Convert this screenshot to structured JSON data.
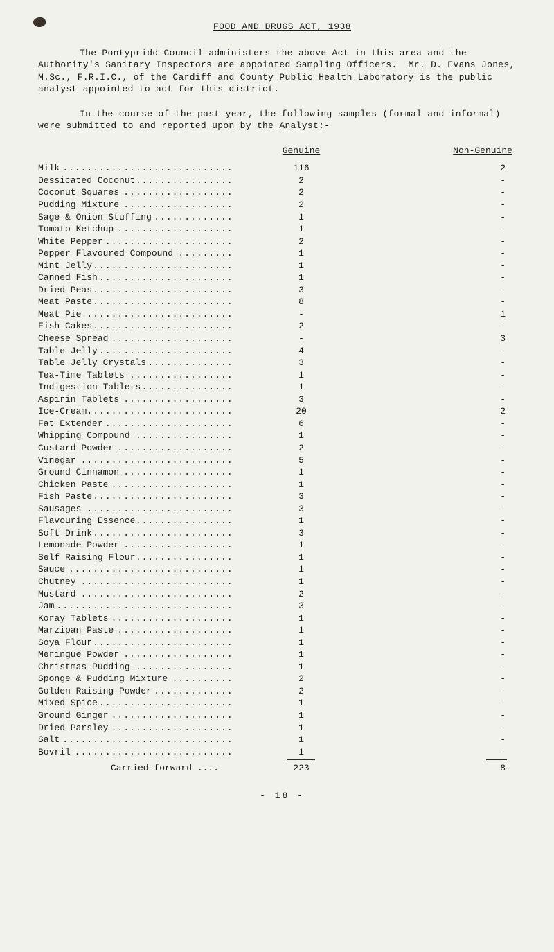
{
  "title": "FOOD AND DRUGS ACT, 1938",
  "para1": "The Pontypridd Council administers the above Act in this area and the Authority's Sanitary Inspectors are appointed Sampling Officers.  Mr. D. Evans Jones, M.Sc., F.R.I.C., of the Cardiff and County Public Health Laboratory is the public analyst appointed to act for this district.",
  "para2": "In the course of the past year, the following samples (formal and informal) were submitted to and reported upon by the Analyst:-",
  "headers": {
    "genuine": "Genuine",
    "non_genuine": "Non-Genuine"
  },
  "rows": [
    {
      "label": "Milk",
      "genuine": "116",
      "non": "2"
    },
    {
      "label": "Dessicated Coconut",
      "genuine": "2",
      "non": "-"
    },
    {
      "label": "Coconut Squares",
      "genuine": "2",
      "non": "-"
    },
    {
      "label": "Pudding Mixture",
      "genuine": "2",
      "non": "-"
    },
    {
      "label": "Sage & Onion Stuffing",
      "genuine": "1",
      "non": "-"
    },
    {
      "label": "Tomato Ketchup",
      "genuine": "1",
      "non": "-"
    },
    {
      "label": "White Pepper",
      "genuine": "2",
      "non": "-"
    },
    {
      "label": "Pepper Flavoured Compound",
      "genuine": "1",
      "non": "-"
    },
    {
      "label": "Mint Jelly",
      "genuine": "1",
      "non": "-"
    },
    {
      "label": "Canned Fish",
      "genuine": "1",
      "non": "-"
    },
    {
      "label": "Dried Peas",
      "genuine": "3",
      "non": "-"
    },
    {
      "label": "Meat Paste",
      "genuine": "8",
      "non": "-"
    },
    {
      "label": "Meat Pie",
      "genuine": "-",
      "non": "1"
    },
    {
      "label": "Fish Cakes",
      "genuine": "2",
      "non": "-"
    },
    {
      "label": "Cheese Spread",
      "genuine": "-",
      "non": "3"
    },
    {
      "label": "Table Jelly",
      "genuine": "4",
      "non": "-"
    },
    {
      "label": "Table Jelly Crystals",
      "genuine": "3",
      "non": "-"
    },
    {
      "label": "Tea-Time Tablets",
      "genuine": "1",
      "non": "-"
    },
    {
      "label": "Indigestion Tablets",
      "genuine": "1",
      "non": "-"
    },
    {
      "label": "Aspirin Tablets",
      "genuine": "3",
      "non": "-"
    },
    {
      "label": "Ice-Cream",
      "genuine": "20",
      "non": "2"
    },
    {
      "label": "Fat Extender",
      "genuine": "6",
      "non": "-"
    },
    {
      "label": "Whipping Compound",
      "genuine": "1",
      "non": "-"
    },
    {
      "label": "Custard Powder",
      "genuine": "2",
      "non": "-"
    },
    {
      "label": "Vinegar",
      "genuine": "5",
      "non": "-"
    },
    {
      "label": "Ground Cinnamon",
      "genuine": "1",
      "non": "-"
    },
    {
      "label": "Chicken Paste",
      "genuine": "1",
      "non": "-"
    },
    {
      "label": "Fish Paste",
      "genuine": "3",
      "non": "-"
    },
    {
      "label": "Sausages",
      "genuine": "3",
      "non": "-"
    },
    {
      "label": "Flavouring Essence",
      "genuine": "1",
      "non": "-"
    },
    {
      "label": "Soft Drink",
      "genuine": "3",
      "non": "-"
    },
    {
      "label": "Lemonade Powder",
      "genuine": "1",
      "non": "-"
    },
    {
      "label": "Self Raising Flour",
      "genuine": "1",
      "non": "-"
    },
    {
      "label": "Sauce",
      "genuine": "1",
      "non": "-"
    },
    {
      "label": "Chutney",
      "genuine": "1",
      "non": "-"
    },
    {
      "label": "Mustard",
      "genuine": "2",
      "non": "-"
    },
    {
      "label": "Jam",
      "genuine": "3",
      "non": "-"
    },
    {
      "label": "Koray Tablets",
      "genuine": "1",
      "non": "-"
    },
    {
      "label": "Marzipan Paste",
      "genuine": "1",
      "non": "-"
    },
    {
      "label": "Soya Flour",
      "genuine": "1",
      "non": "-"
    },
    {
      "label": "Meringue Powder",
      "genuine": "1",
      "non": "-"
    },
    {
      "label": "Christmas Pudding",
      "genuine": "1",
      "non": "-"
    },
    {
      "label": "Sponge & Pudding Mixture",
      "genuine": "2",
      "non": "-"
    },
    {
      "label": "Golden Raising Powder",
      "genuine": "2",
      "non": "-"
    },
    {
      "label": "Mixed Spice",
      "genuine": "1",
      "non": "-"
    },
    {
      "label": "Ground Ginger",
      "genuine": "1",
      "non": "-"
    },
    {
      "label": "Dried Parsley",
      "genuine": "1",
      "non": "-"
    },
    {
      "label": "Salt",
      "genuine": "1",
      "non": "-"
    },
    {
      "label": "Bovril",
      "genuine": "1",
      "non": "-"
    }
  ],
  "carried": {
    "label": "Carried forward ....",
    "genuine": "223",
    "non": "8"
  },
  "page_number": "-  18  -",
  "style": {
    "background_color": "#f2f2ed",
    "text_color": "#1a1a1a",
    "font_family": "Courier New, monospace",
    "font_size_pt": 10
  }
}
